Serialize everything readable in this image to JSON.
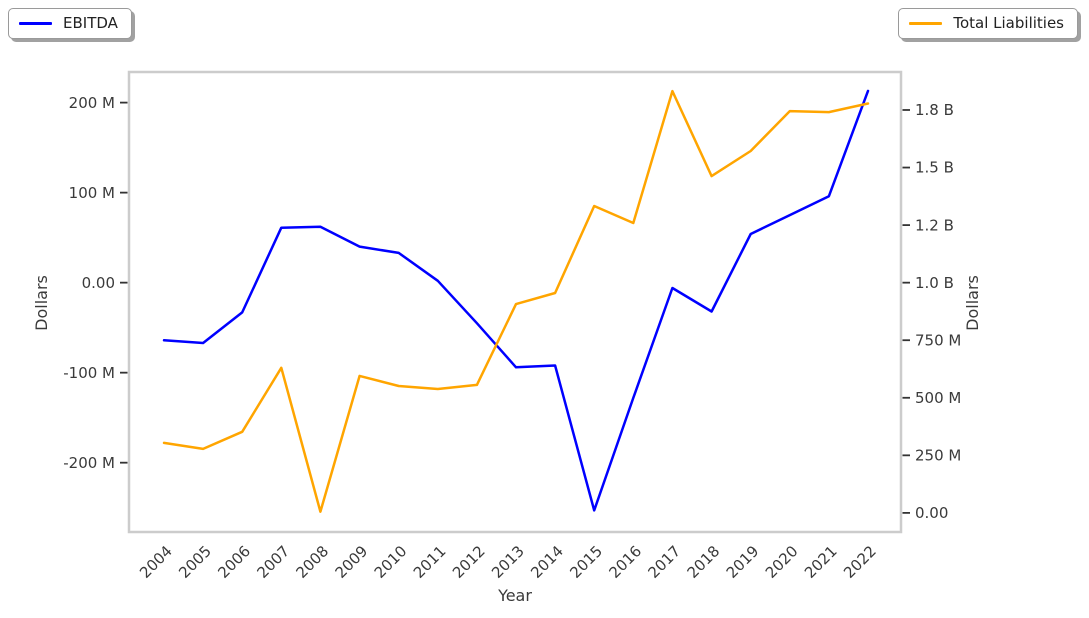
{
  "chart_data": {
    "type": "line",
    "xlabel": "Year",
    "x_years": [
      "2004",
      "2005",
      "2006",
      "2007",
      "2008",
      "2009",
      "2010",
      "2011",
      "2012",
      "2013",
      "2014",
      "2015",
      "2016",
      "2017",
      "2018",
      "2019",
      "2020",
      "2021",
      "2022"
    ],
    "series": [
      {
        "name": "EBITDA",
        "axis": "left",
        "color": "#0000ff",
        "values_millions_usd": [
          -64,
          -67,
          -33,
          61,
          62,
          40,
          33,
          2,
          -45,
          -94,
          -92,
          -253,
          -128,
          -6,
          -32,
          54,
          75,
          96,
          213
        ]
      },
      {
        "name": "Total Liabilities",
        "axis": "right",
        "color": "#ffa500",
        "values_millions_usd": [
          304,
          278,
          352,
          630,
          5,
          595,
          551,
          538,
          556,
          907,
          955,
          1333,
          1259,
          1832,
          1463,
          1572,
          1745,
          1741,
          1778
        ]
      }
    ],
    "left_axis": {
      "label": "Dollars",
      "tick_values_millions": [
        200,
        100,
        0,
        -100,
        -200
      ],
      "tick_labels": [
        "200 M",
        "100 M",
        "0.00",
        "-100 M",
        "-200 M"
      ],
      "range_millions": [
        -277,
        234
      ]
    },
    "right_axis": {
      "label": "Dollars",
      "tick_values_millions": [
        1750,
        1500,
        1250,
        1000,
        750,
        500,
        250,
        0
      ],
      "tick_labels": [
        "1.8 B",
        "1.5 B",
        "1.2 B",
        "1.0 B",
        "750 M",
        "500 M",
        "250 M",
        "0.00"
      ],
      "range_millions": [
        -83,
        1915
      ]
    },
    "legend": [
      {
        "label": "EBITDA",
        "position": "top-left"
      },
      {
        "label": "Total Liabilities",
        "position": "top-right"
      }
    ],
    "grid": false,
    "spine_color": "#cccccc",
    "tick_color": "#333333"
  }
}
